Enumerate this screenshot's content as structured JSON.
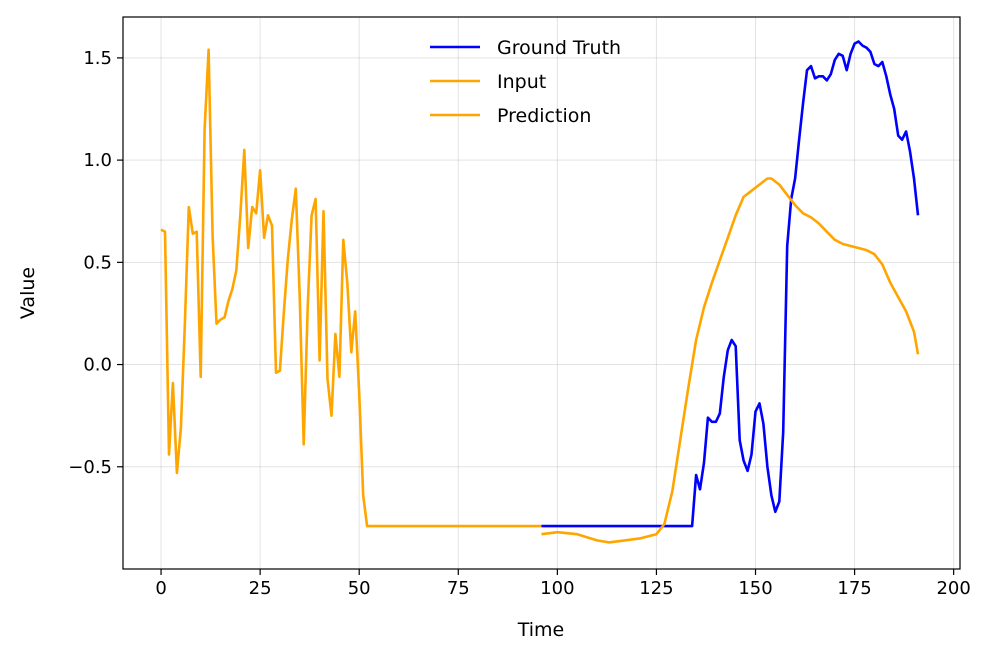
{
  "chart_data": {
    "type": "line",
    "title": "",
    "xlabel": "Time",
    "ylabel": "Value",
    "xlim": [
      -9.6,
      201.6
    ],
    "ylim": [
      -1.0,
      1.7
    ],
    "xticks": [
      0,
      25,
      50,
      75,
      100,
      125,
      150,
      175,
      200
    ],
    "xtick_labels": [
      "0",
      "25",
      "50",
      "75",
      "100",
      "125",
      "150",
      "175",
      "200"
    ],
    "yticks": [
      -0.5,
      0.0,
      0.5,
      1.0,
      1.5
    ],
    "ytick_labels": [
      "−0.5",
      "0.0",
      "0.5",
      "1.0",
      "1.5"
    ],
    "grid": true,
    "legend_position": "top-center",
    "series": [
      {
        "name": "Ground Truth",
        "color": "#0000ff",
        "points": [
          [
            96,
            -0.79
          ],
          [
            100,
            -0.79
          ],
          [
            110,
            -0.79
          ],
          [
            120,
            -0.79
          ],
          [
            130,
            -0.79
          ],
          [
            134,
            -0.79
          ],
          [
            135,
            -0.54
          ],
          [
            136,
            -0.61
          ],
          [
            137,
            -0.48
          ],
          [
            138,
            -0.26
          ],
          [
            139,
            -0.28
          ],
          [
            140,
            -0.28
          ],
          [
            141,
            -0.24
          ],
          [
            142,
            -0.06
          ],
          [
            143,
            0.07
          ],
          [
            144,
            0.12
          ],
          [
            145,
            0.09
          ],
          [
            146,
            -0.37
          ],
          [
            147,
            -0.47
          ],
          [
            148,
            -0.52
          ],
          [
            149,
            -0.44
          ],
          [
            150,
            -0.23
          ],
          [
            151,
            -0.19
          ],
          [
            152,
            -0.29
          ],
          [
            153,
            -0.5
          ],
          [
            154,
            -0.64
          ],
          [
            155,
            -0.72
          ],
          [
            156,
            -0.67
          ],
          [
            157,
            -0.33
          ],
          [
            158,
            0.58
          ],
          [
            159,
            0.81
          ],
          [
            160,
            0.91
          ],
          [
            161,
            1.1
          ],
          [
            162,
            1.28
          ],
          [
            163,
            1.44
          ],
          [
            164,
            1.46
          ],
          [
            165,
            1.4
          ],
          [
            166,
            1.41
          ],
          [
            167,
            1.41
          ],
          [
            168,
            1.39
          ],
          [
            169,
            1.42
          ],
          [
            170,
            1.49
          ],
          [
            171,
            1.52
          ],
          [
            172,
            1.51
          ],
          [
            173,
            1.44
          ],
          [
            174,
            1.52
          ],
          [
            175,
            1.57
          ],
          [
            176,
            1.58
          ],
          [
            177,
            1.56
          ],
          [
            178,
            1.55
          ],
          [
            179,
            1.53
          ],
          [
            180,
            1.47
          ],
          [
            181,
            1.46
          ],
          [
            182,
            1.48
          ],
          [
            183,
            1.41
          ],
          [
            184,
            1.32
          ],
          [
            185,
            1.25
          ],
          [
            186,
            1.12
          ],
          [
            187,
            1.1
          ],
          [
            188,
            1.14
          ],
          [
            189,
            1.04
          ],
          [
            190,
            0.91
          ],
          [
            191,
            0.73
          ]
        ]
      },
      {
        "name": "Input",
        "color": "#ffa500",
        "points": [
          [
            0,
            0.66
          ],
          [
            1,
            0.65
          ],
          [
            2,
            -0.44
          ],
          [
            3,
            -0.09
          ],
          [
            4,
            -0.53
          ],
          [
            5,
            -0.31
          ],
          [
            6,
            0.19
          ],
          [
            7,
            0.77
          ],
          [
            8,
            0.64
          ],
          [
            9,
            0.65
          ],
          [
            10,
            -0.06
          ],
          [
            11,
            1.15
          ],
          [
            12,
            1.54
          ],
          [
            13,
            0.63
          ],
          [
            14,
            0.2
          ],
          [
            15,
            0.22
          ],
          [
            16,
            0.23
          ],
          [
            17,
            0.31
          ],
          [
            18,
            0.37
          ],
          [
            19,
            0.46
          ],
          [
            20,
            0.73
          ],
          [
            21,
            1.05
          ],
          [
            22,
            0.57
          ],
          [
            23,
            0.77
          ],
          [
            24,
            0.74
          ],
          [
            25,
            0.95
          ],
          [
            26,
            0.62
          ],
          [
            27,
            0.73
          ],
          [
            28,
            0.68
          ],
          [
            29,
            -0.04
          ],
          [
            30,
            -0.03
          ],
          [
            31,
            0.26
          ],
          [
            32,
            0.52
          ],
          [
            33,
            0.71
          ],
          [
            34,
            0.86
          ],
          [
            35,
            0.32
          ],
          [
            36,
            -0.39
          ],
          [
            37,
            0.28
          ],
          [
            38,
            0.73
          ],
          [
            39,
            0.81
          ],
          [
            40,
            0.02
          ],
          [
            41,
            0.75
          ],
          [
            42,
            -0.07
          ],
          [
            43,
            -0.25
          ],
          [
            44,
            0.15
          ],
          [
            45,
            -0.06
          ],
          [
            46,
            0.61
          ],
          [
            47,
            0.4
          ],
          [
            48,
            0.06
          ],
          [
            49,
            0.26
          ],
          [
            50,
            -0.14
          ],
          [
            51,
            -0.64
          ],
          [
            52,
            -0.79
          ],
          [
            60,
            -0.79
          ],
          [
            70,
            -0.79
          ],
          [
            80,
            -0.79
          ],
          [
            90,
            -0.79
          ],
          [
            96,
            -0.79
          ]
        ]
      },
      {
        "name": "Prediction",
        "color": "#ffa500",
        "points": [
          [
            96,
            -0.83
          ],
          [
            100,
            -0.82
          ],
          [
            105,
            -0.83
          ],
          [
            110,
            -0.86
          ],
          [
            113,
            -0.87
          ],
          [
            117,
            -0.86
          ],
          [
            121,
            -0.85
          ],
          [
            125,
            -0.83
          ],
          [
            127,
            -0.78
          ],
          [
            129,
            -0.62
          ],
          [
            131,
            -0.37
          ],
          [
            133,
            -0.12
          ],
          [
            135,
            0.12
          ],
          [
            137,
            0.28
          ],
          [
            139,
            0.4
          ],
          [
            141,
            0.51
          ],
          [
            143,
            0.62
          ],
          [
            145,
            0.73
          ],
          [
            147,
            0.82
          ],
          [
            149,
            0.85
          ],
          [
            151,
            0.88
          ],
          [
            153,
            0.91
          ],
          [
            154,
            0.91
          ],
          [
            156,
            0.88
          ],
          [
            158,
            0.83
          ],
          [
            160,
            0.78
          ],
          [
            162,
            0.74
          ],
          [
            164,
            0.72
          ],
          [
            166,
            0.69
          ],
          [
            168,
            0.65
          ],
          [
            170,
            0.61
          ],
          [
            172,
            0.59
          ],
          [
            174,
            0.58
          ],
          [
            176,
            0.57
          ],
          [
            178,
            0.56
          ],
          [
            180,
            0.54
          ],
          [
            182,
            0.49
          ],
          [
            184,
            0.4
          ],
          [
            186,
            0.33
          ],
          [
            188,
            0.26
          ],
          [
            190,
            0.16
          ],
          [
            191,
            0.05
          ]
        ]
      }
    ]
  }
}
